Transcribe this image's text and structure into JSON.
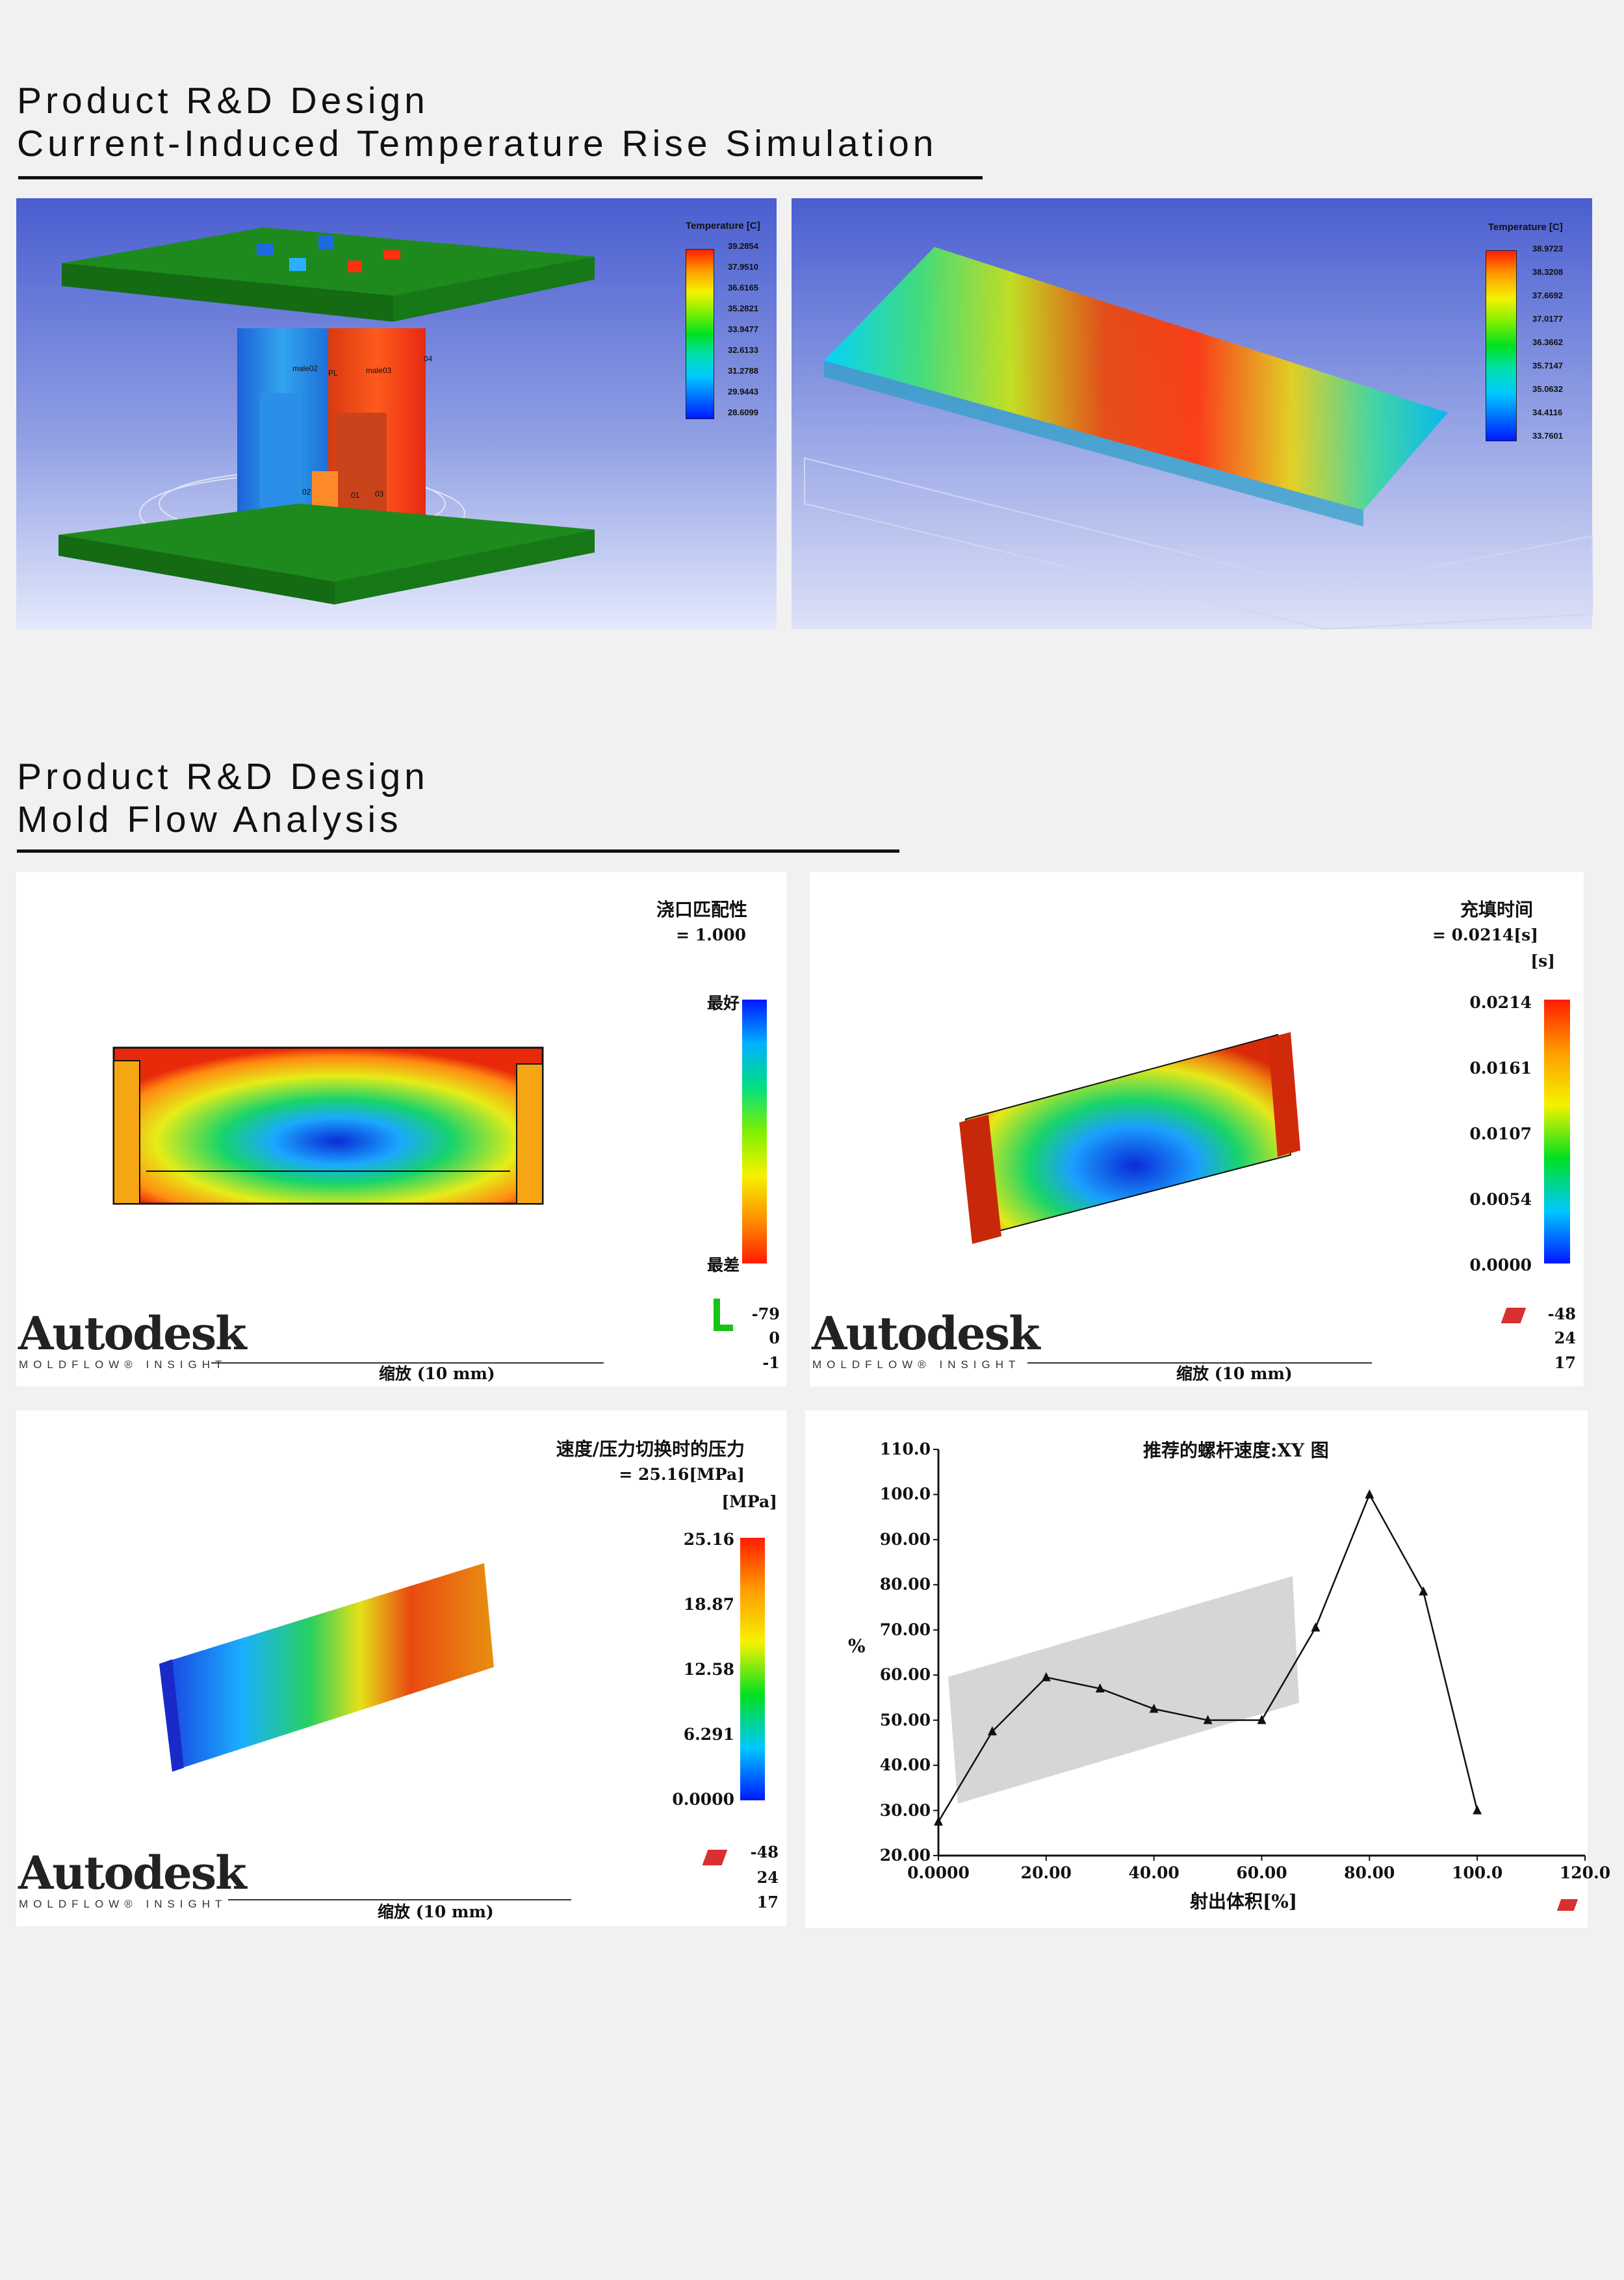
{
  "section1": {
    "title_line1": "Product R&D Design",
    "title_line2": "Current-Induced Temperature Rise Simulation"
  },
  "sim_left": {
    "legend_title": "Temperature [C]",
    "legend_values": [
      "39.2854",
      "37.9510",
      "36.6165",
      "35.2821",
      "33.9477",
      "32.6133",
      "31.2788",
      "29.9443",
      "28.6099"
    ],
    "part_labels": [
      "male02",
      "PL",
      "male03",
      "04",
      "02",
      "01",
      "03"
    ]
  },
  "sim_right": {
    "legend_title": "Temperature [C]",
    "legend_values": [
      "38.9723",
      "38.3208",
      "37.6692",
      "37.0177",
      "36.3662",
      "35.7147",
      "35.0632",
      "34.4116",
      "33.7601"
    ]
  },
  "section2": {
    "title_line1": "Product R&D Design",
    "title_line2": "Mold Flow Analysis"
  },
  "mf1": {
    "title": "浇口匹配性",
    "value": "= 1.000",
    "best": "最好",
    "worst": "最差",
    "brand": "Autodesk",
    "brand_sub": "MOLDFLOW® INSIGHT",
    "scale": "缩放 (10 mm)",
    "orient": [
      "-79",
      "0",
      "-1"
    ]
  },
  "mf2": {
    "title": "充填时间",
    "value": "= 0.0214[s]",
    "unit": "[s]",
    "legend_values": [
      "0.0214",
      "0.0161",
      "0.0107",
      "0.0054",
      "0.0000"
    ],
    "brand": "Autodesk",
    "brand_sub": "MOLDFLOW® INSIGHT",
    "scale": "缩放 (10 mm)",
    "orient": [
      "-48",
      "24",
      "17"
    ]
  },
  "mf3": {
    "title": "速度/压力切换时的压力",
    "value": "= 25.16[MPa]",
    "unit": "[MPa]",
    "legend_values": [
      "25.16",
      "18.87",
      "12.58",
      "6.291",
      "0.0000"
    ],
    "brand": "Autodesk",
    "brand_sub": "MOLDFLOW® INSIGHT",
    "scale": "缩放 (10 mm)",
    "orient": [
      "-48",
      "24",
      "17"
    ]
  },
  "chart_data": {
    "type": "line",
    "title": "推荐的螺杆速度:XY 图",
    "xlabel": "射出体积[%]",
    "ylabel": "%",
    "xlim": [
      0,
      120
    ],
    "ylim": [
      20,
      110
    ],
    "x_ticks": [
      "0.0000",
      "20.00",
      "40.00",
      "60.00",
      "80.00",
      "100.0",
      "120.0"
    ],
    "y_ticks": [
      "110.0",
      "100.0",
      "90.00",
      "80.00",
      "70.00",
      "60.00",
      "50.00",
      "40.00",
      "30.00",
      "20.00"
    ],
    "x": [
      0,
      10,
      20,
      30,
      40,
      50,
      60,
      70,
      80,
      90,
      100
    ],
    "values": [
      27.5,
      47.5,
      59.5,
      57,
      52.5,
      50,
      50,
      70.5,
      100,
      78.5,
      30
    ]
  },
  "colors": {
    "page_bg": "#f1f1f1",
    "sim_bg_top": "#4a5ed0",
    "plate_green": "#1e8a1e",
    "hot": "#ff2a00",
    "cold": "#0a2bd6"
  }
}
